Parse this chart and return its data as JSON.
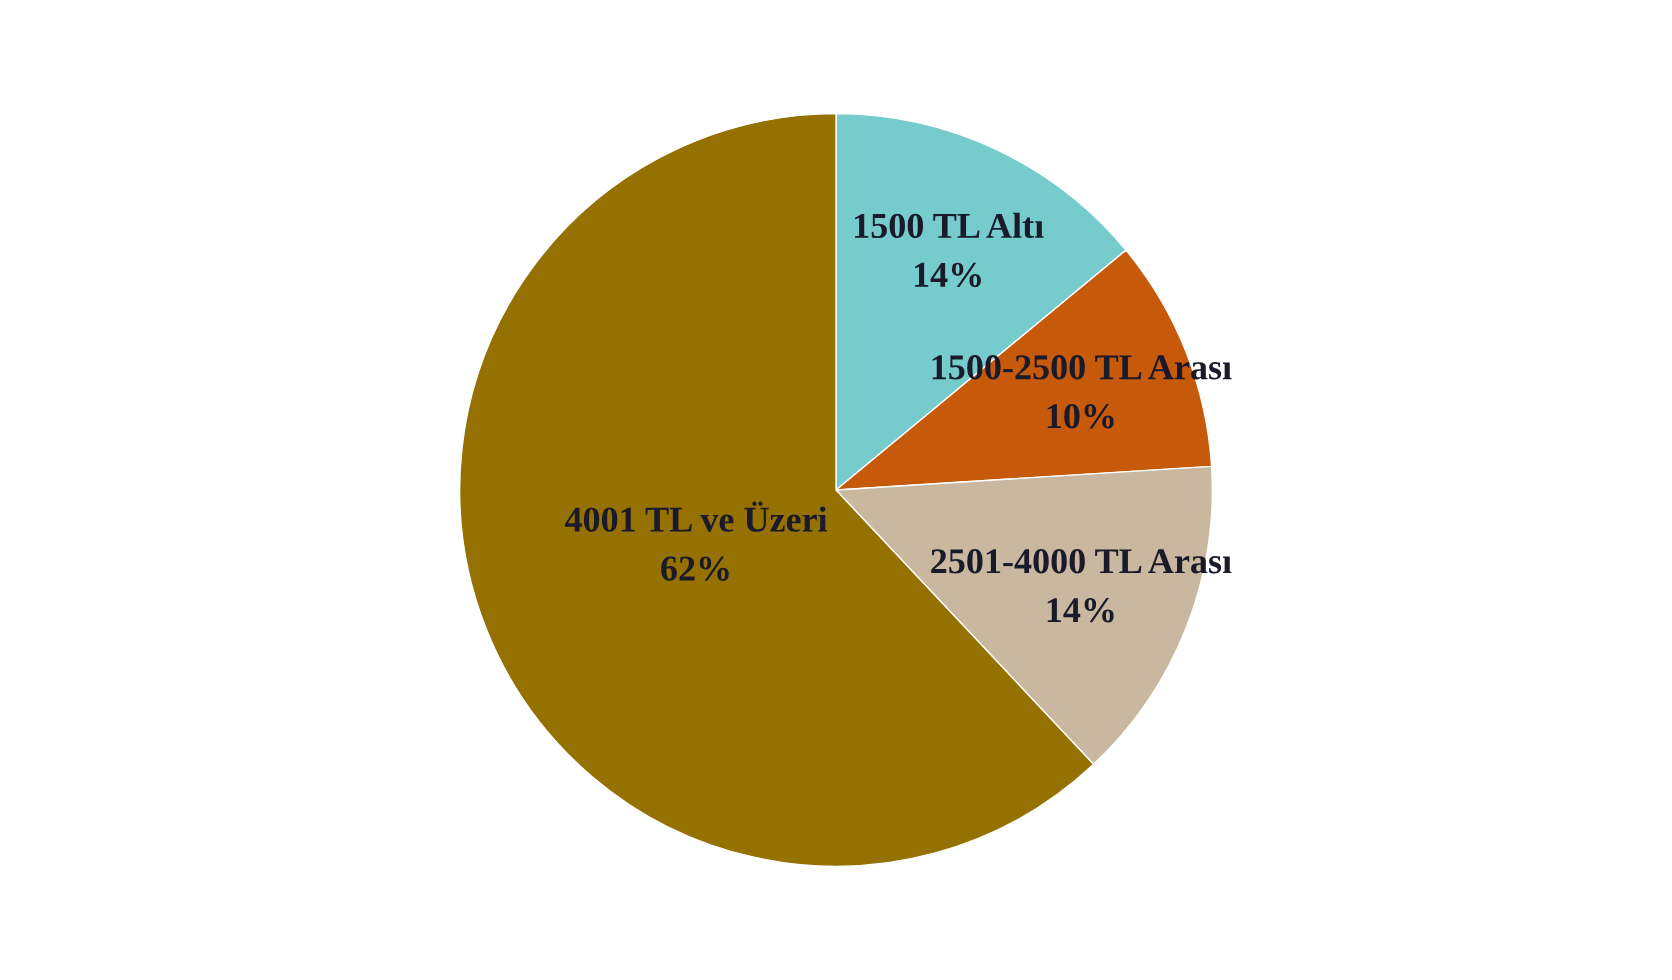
{
  "chart_data": {
    "type": "pie",
    "categories": [
      "1500 TL Altı",
      "1500-2500 TL Arası",
      "2501-4000 TL Arası",
      "4001 TL ve Üzeri"
    ],
    "values": [
      14,
      10,
      14,
      62
    ],
    "value_labels": [
      "14%",
      "10%",
      "14%",
      "62%"
    ],
    "colors": [
      "#76cccc",
      "#c65a0a",
      "#c9b89f",
      "#947100"
    ]
  }
}
